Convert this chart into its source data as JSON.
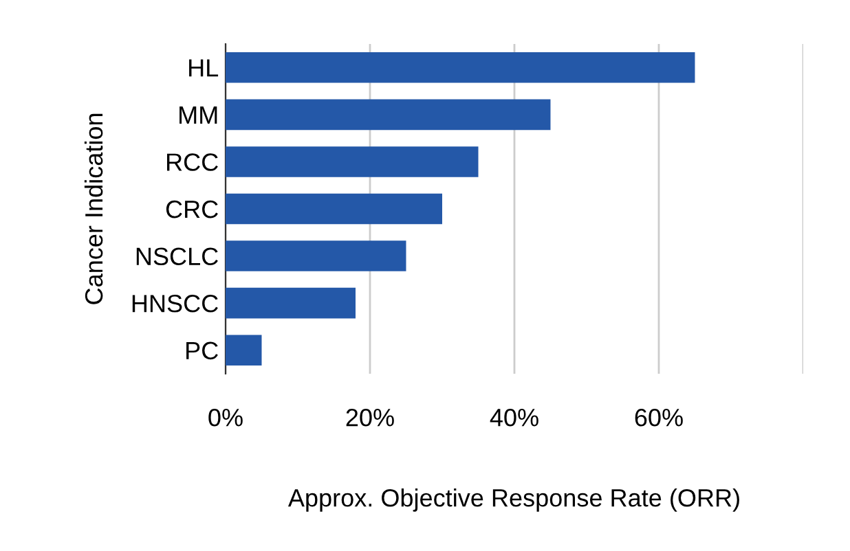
{
  "chart_data": {
    "type": "bar",
    "orientation": "horizontal",
    "categories": [
      "HL",
      "MM",
      "RCC",
      "CRC",
      "NSCLC",
      "HNSCC",
      "PC"
    ],
    "values": [
      65,
      45,
      35,
      30,
      25,
      18,
      5
    ],
    "color": "#2458a8",
    "xlabel": "Approx. Objective Response Rate (ORR)",
    "ylabel": "Cancer Indication",
    "xlim": [
      0,
      80
    ],
    "xticks": [
      {
        "value": 0,
        "label": "0%"
      },
      {
        "value": 20,
        "label": "20%"
      },
      {
        "value": 40,
        "label": "40%"
      },
      {
        "value": 60,
        "label": "60%"
      },
      {
        "value": 80,
        "label": null
      }
    ],
    "grid": "x",
    "legend": false
  }
}
